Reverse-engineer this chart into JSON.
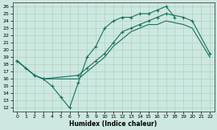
{
  "xlabel": "Humidex (Indice chaleur)",
  "background_color": "#cce8e0",
  "grid_color": "#aaccbb",
  "line_color": "#1a7060",
  "xlim": [
    -0.5,
    22.5
  ],
  "ylim": [
    11.5,
    26.5
  ],
  "xticks": [
    0,
    1,
    2,
    3,
    4,
    5,
    6,
    7,
    8,
    9,
    10,
    11,
    12,
    13,
    14,
    15,
    16,
    17,
    18,
    19,
    20,
    21,
    22
  ],
  "yticks": [
    12,
    13,
    14,
    15,
    16,
    17,
    18,
    19,
    20,
    21,
    22,
    23,
    24,
    25,
    26
  ],
  "line1_x": [
    0,
    1,
    2,
    3,
    4,
    5,
    6,
    7,
    8,
    9,
    10,
    11,
    12,
    13,
    14,
    15,
    16,
    17,
    18
  ],
  "line1_y": [
    18.5,
    17.5,
    16.5,
    16.0,
    15.0,
    13.5,
    12.0,
    15.5,
    19.0,
    20.5,
    23.0,
    24.0,
    24.5,
    24.5,
    25.0,
    25.0,
    25.5,
    26.0,
    24.5
  ],
  "line2_x": [
    0,
    2,
    3,
    7,
    8,
    9,
    10,
    11,
    12,
    13,
    14,
    15,
    16,
    17,
    19,
    20,
    22
  ],
  "line2_y": [
    18.5,
    16.5,
    16.0,
    16.5,
    17.5,
    18.5,
    19.5,
    21.0,
    22.5,
    23.0,
    23.5,
    24.0,
    24.5,
    25.0,
    24.5,
    24.0,
    19.5
  ],
  "line3_x": [
    0,
    2,
    3,
    7,
    8,
    9,
    10,
    11,
    12,
    13,
    14,
    15,
    16,
    17,
    19,
    20,
    22
  ],
  "line3_y": [
    18.5,
    16.5,
    16.0,
    16.0,
    17.0,
    18.0,
    19.0,
    20.5,
    21.5,
    22.5,
    23.0,
    23.5,
    23.5,
    24.0,
    23.5,
    23.0,
    19.0
  ]
}
